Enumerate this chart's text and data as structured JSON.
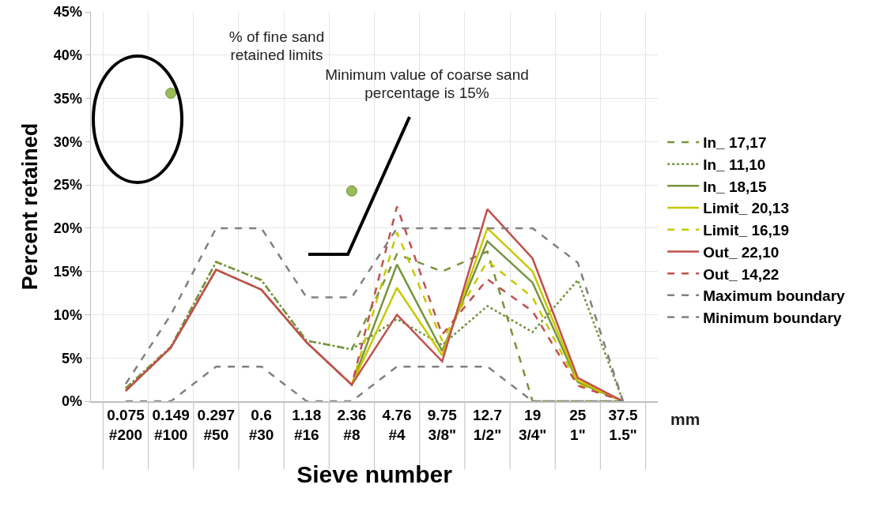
{
  "chart_data": {
    "type": "line",
    "xlabel": "Sieve number",
    "ylabel": "Percent retained",
    "categories": [
      "0.075\n#200",
      "0.149\n#100",
      "0.297\n#50",
      "0.6\n#30",
      "1.18\n#16",
      "2.36\n#8",
      "4.76\n#4",
      "9.75\n3/8\"",
      "12.7\n1/2\"",
      "19\n3/4\"",
      "25\n1\"",
      "37.5\n1.5\""
    ],
    "series": [
      {
        "name": "In_ 17,17",
        "color": "#77933c",
        "line_style": "dashed",
        "values": [
          1.5,
          6.3,
          16.1,
          14,
          7,
          6,
          17,
          15,
          17.3,
          0,
          0,
          0
        ]
      },
      {
        "name": "In_ 11,10",
        "color": "#77933c",
        "line_style": "dotted",
        "values": [
          1.5,
          6.3,
          16.1,
          14,
          7,
          6,
          9.5,
          6.5,
          11,
          8,
          14,
          0
        ]
      },
      {
        "name": "In_ 18,15",
        "color": "#77933c",
        "line_style": "solid",
        "values": [
          1.2,
          6.2,
          15.2,
          12.9,
          6.8,
          1.9,
          15.8,
          5.8,
          18.5,
          13.7,
          2.2,
          0
        ]
      },
      {
        "name": "Limit_ 20,13",
        "color": "#c8c800",
        "line_style": "solid",
        "values": [
          null,
          null,
          null,
          null,
          null,
          1.9,
          13.1,
          5.3,
          20,
          15,
          2.4,
          0
        ]
      },
      {
        "name": "Limit_ 16,19",
        "color": "#c8c800",
        "line_style": "dashed",
        "values": [
          null,
          null,
          null,
          null,
          null,
          1.9,
          19.5,
          7,
          16.2,
          12,
          2,
          0
        ]
      },
      {
        "name": "Out_ 22,10",
        "color": "#c0504d",
        "line_style": "solid",
        "values": [
          1.2,
          6.2,
          15.2,
          12.9,
          6.8,
          1.9,
          10,
          4.6,
          22.2,
          16.5,
          2.7,
          0
        ]
      },
      {
        "name": "Out_ 14,22",
        "color": "#c0504d",
        "line_style": "dashed",
        "values": [
          1.2,
          6.2,
          15.2,
          12.9,
          6.8,
          1.9,
          22.5,
          7.7,
          14.1,
          10.4,
          1.8,
          0
        ]
      },
      {
        "name": "Maximum boundary",
        "color": "#808080",
        "line_style": "dashed",
        "values": [
          2,
          10,
          20,
          20,
          12,
          12,
          20,
          20,
          20,
          20,
          16,
          0
        ]
      },
      {
        "name": "Minimum boundary",
        "color": "#808080",
        "line_style": "dashed",
        "values": [
          0,
          0,
          4,
          4,
          0,
          0,
          4,
          4,
          4,
          0,
          0,
          0
        ]
      },
      {
        "type": "scatter",
        "marker": "circle",
        "color": "#9bbb59",
        "values": [
          null,
          35.6,
          null,
          null,
          null,
          24.3,
          null,
          null,
          null,
          null,
          null,
          null
        ]
      }
    ],
    "ylim": [
      0,
      45
    ],
    "yticks": [
      {
        "value": 0,
        "label": "0%"
      },
      {
        "value": 5,
        "label": "5%"
      },
      {
        "value": 10,
        "label": "10%"
      },
      {
        "value": 15,
        "label": "15%"
      },
      {
        "value": 20,
        "label": "20%"
      },
      {
        "value": 25,
        "label": "25%"
      },
      {
        "value": 30,
        "label": "30%"
      },
      {
        "value": 35,
        "label": "35%"
      },
      {
        "value": 40,
        "label": "40%"
      },
      {
        "value": 45,
        "label": "45%"
      }
    ],
    "grid": true,
    "legend": "right",
    "marker": "none",
    "annotations": [
      "% of fine sand retained limits",
      "Minimum value of coarse sand percentage is 15%",
      "mm"
    ]
  }
}
